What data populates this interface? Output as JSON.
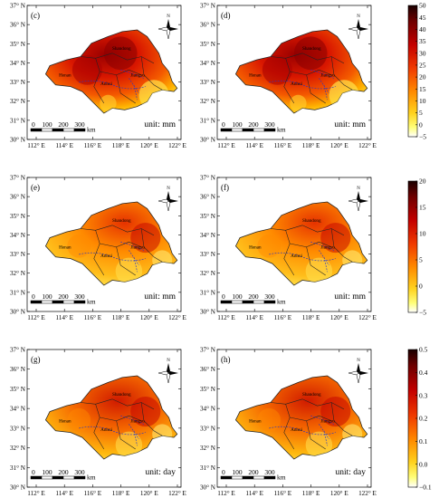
{
  "axes": {
    "lat_labels": [
      "37° N",
      "36° N",
      "35° N",
      "34° N",
      "33° N",
      "32° N",
      "31° N",
      "30° N"
    ],
    "lon_labels": [
      "112° E",
      "114° E",
      "116° E",
      "118° E",
      "120° E",
      "122° E"
    ]
  },
  "panels": [
    {
      "label": "(c)",
      "unit": "unit: mm"
    },
    {
      "label": "(d)",
      "unit": "unit: mm"
    },
    {
      "label": "(e)",
      "unit": "unit: mm"
    },
    {
      "label": "(f)",
      "unit": "unit: mm"
    },
    {
      "label": "(g)",
      "unit": "unit: day"
    },
    {
      "label": "(h)",
      "unit": "unit: day"
    }
  ],
  "provinces": [
    "Shandong",
    "Henan",
    "Anhui",
    "Jiangsu"
  ],
  "scalebar": {
    "ticks": [
      "0",
      "100",
      "200",
      "300"
    ],
    "unit": "km"
  },
  "north_arrow": "N",
  "colorbars": [
    {
      "ticks": [
        "50",
        "45",
        "40",
        "35",
        "30",
        "25",
        "20",
        "15",
        "10",
        "5",
        "0",
        "−5"
      ]
    },
    {
      "ticks": [
        "20",
        "15",
        "10",
        "5",
        "0",
        "−5"
      ]
    },
    {
      "ticks": [
        "0.5",
        "0.4",
        "0.3",
        "0.2",
        "0.1",
        "0.0",
        "−0.1"
      ]
    }
  ],
  "colors": {
    "dark": "#2a0000",
    "mid": "#e62400",
    "light": "#ffff60",
    "river": "#2233cc"
  }
}
